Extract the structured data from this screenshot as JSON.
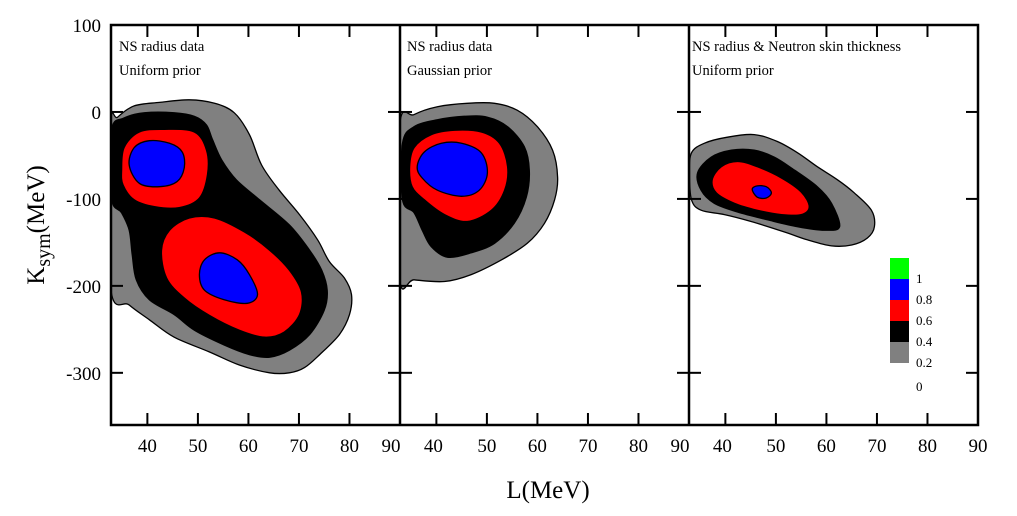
{
  "chart_data": {
    "type": "contour",
    "xlabel": "L(MeV)",
    "ylabel_main": "K",
    "ylabel_sub": "sym",
    "ylabel_unit": "(MeV)",
    "xlim": [
      32.8,
      90
    ],
    "ylim": [
      -360,
      100
    ],
    "xticks": [
      40,
      50,
      60,
      70,
      80,
      90
    ],
    "yticks": [
      100,
      0,
      -100,
      -200,
      -300
    ],
    "grid": false,
    "colorbar": {
      "placement": "right panel, lower-right",
      "levels": [
        {
          "range": [
            0.8,
            1.0
          ],
          "color": "#00ff00"
        },
        {
          "range": [
            0.6,
            0.8
          ],
          "color": "#0000ff"
        },
        {
          "range": [
            0.4,
            0.6
          ],
          "color": "#ff0000"
        },
        {
          "range": [
            0.2,
            0.4
          ],
          "color": "#000000"
        },
        {
          "range": [
            0.0,
            0.2
          ],
          "color": "#808080"
        }
      ],
      "tick_labels": [
        "1",
        "0.8",
        "0.6",
        "0.4",
        "0.2",
        "0"
      ]
    },
    "panels": [
      {
        "annotation": [
          "NS radius data",
          "Uniform prior"
        ],
        "contours": [
          {
            "level": "0.2",
            "color": "#808080",
            "points": [
              [
                32.7,
                -18
              ],
              [
                34.1,
                -6
              ],
              [
                37.4,
                7
              ],
              [
                42.4,
                11
              ],
              [
                48.3,
                14
              ],
              [
                53.3,
                10
              ],
              [
                57.2,
                -1
              ],
              [
                60.2,
                -26
              ],
              [
                62.6,
                -61
              ],
              [
                66.1,
                -90
              ],
              [
                70.1,
                -118
              ],
              [
                73.7,
                -147
              ],
              [
                76.0,
                -172
              ],
              [
                79.0,
                -191
              ],
              [
                80.4,
                -210
              ],
              [
                80.0,
                -233
              ],
              [
                78.0,
                -256
              ],
              [
                74.1,
                -279
              ],
              [
                71.1,
                -294
              ],
              [
                68.1,
                -300
              ],
              [
                64.2,
                -300
              ],
              [
                58.2,
                -291
              ],
              [
                52.3,
                -276
              ],
              [
                45.3,
                -259
              ],
              [
                40.4,
                -239
              ],
              [
                36.4,
                -222
              ],
              [
                32.7,
                -201
              ]
            ]
          },
          {
            "level": "0.4",
            "color": "#000000",
            "points": [
              [
                32.9,
                -21
              ],
              [
                35.4,
                -7
              ],
              [
                39.4,
                -1
              ],
              [
                45.3,
                -1
              ],
              [
                49.3,
                -5
              ],
              [
                51.7,
                -15
              ],
              [
                52.9,
                -32
              ],
              [
                54.7,
                -55
              ],
              [
                57.6,
                -78
              ],
              [
                62.2,
                -101
              ],
              [
                68.1,
                -130
              ],
              [
                72.1,
                -159
              ],
              [
                74.5,
                -182
              ],
              [
                75.6,
                -205
              ],
              [
                75.0,
                -228
              ],
              [
                72.1,
                -256
              ],
              [
                68.1,
                -274
              ],
              [
                64.2,
                -282
              ],
              [
                60.2,
                -279
              ],
              [
                55.2,
                -268
              ],
              [
                49.3,
                -251
              ],
              [
                45.3,
                -233
              ],
              [
                40.4,
                -216
              ],
              [
                37.8,
                -193
              ],
              [
                37.0,
                -164
              ],
              [
                36.4,
                -136
              ],
              [
                34.9,
                -116
              ],
              [
                32.9,
                -99
              ]
            ]
          },
          {
            "level": "0.6",
            "color": "#ff0000",
            "points": [
              [
                34.9,
                -67
              ],
              [
                35.4,
                -41
              ],
              [
                38.4,
                -23
              ],
              [
                43.4,
                -20
              ],
              [
                49.3,
                -23
              ],
              [
                51.7,
                -44
              ],
              [
                51.9,
                -72
              ],
              [
                50.3,
                -99
              ],
              [
                46.3,
                -110
              ],
              [
                41.4,
                -109
              ],
              [
                37.4,
                -101
              ],
              [
                35.2,
                -84
              ]
            ]
          },
          {
            "level": "0.8",
            "color": "#0000ff",
            "points": [
              [
                36.4,
                -61
              ],
              [
                37.4,
                -41
              ],
              [
                40.4,
                -33
              ],
              [
                44.4,
                -36
              ],
              [
                46.9,
                -46
              ],
              [
                47.3,
                -64
              ],
              [
                45.9,
                -80
              ],
              [
                42.4,
                -86
              ],
              [
                38.4,
                -82
              ]
            ]
          },
          {
            "level": "0.6",
            "color": "#ff0000",
            "points": [
              [
                42.8,
                -159
              ],
              [
                44.4,
                -136
              ],
              [
                48.3,
                -122
              ],
              [
                53.3,
                -122
              ],
              [
                59.2,
                -138
              ],
              [
                64.2,
                -159
              ],
              [
                68.1,
                -182
              ],
              [
                70.5,
                -207
              ],
              [
                70.1,
                -233
              ],
              [
                67.1,
                -253
              ],
              [
                63.2,
                -259
              ],
              [
                58.2,
                -251
              ],
              [
                52.3,
                -234
              ],
              [
                47.3,
                -214
              ],
              [
                43.8,
                -191
              ]
            ]
          },
          {
            "level": "0.8",
            "color": "#0000ff",
            "points": [
              [
                50.3,
                -187
              ],
              [
                51.3,
                -170
              ],
              [
                54.3,
                -162
              ],
              [
                57.8,
                -170
              ],
              [
                60.2,
                -187
              ],
              [
                61.8,
                -210
              ],
              [
                59.8,
                -220
              ],
              [
                55.2,
                -216
              ],
              [
                51.3,
                -205
              ]
            ]
          }
        ]
      },
      {
        "annotation": [
          "NS radius data",
          "Gaussian prior"
        ],
        "contours": [
          {
            "level": "0.2",
            "color": "#808080",
            "points": [
              [
                32.7,
                -17
              ],
              [
                35.6,
                -3
              ],
              [
                40.2,
                6
              ],
              [
                46.1,
                10
              ],
              [
                51.5,
                10
              ],
              [
                56.0,
                2
              ],
              [
                60.0,
                -17
              ],
              [
                63.0,
                -44
              ],
              [
                64.0,
                -75
              ],
              [
                63.4,
                -101
              ],
              [
                61.4,
                -128
              ],
              [
                58.0,
                -151
              ],
              [
                52.9,
                -170
              ],
              [
                46.9,
                -187
              ],
              [
                41.6,
                -195
              ],
              [
                35.6,
                -193
              ],
              [
                32.7,
                -190
              ]
            ]
          },
          {
            "level": "0.4",
            "color": "#000000",
            "points": [
              [
                33.3,
                -36
              ],
              [
                35.6,
                -17
              ],
              [
                40.2,
                -9
              ],
              [
                45.5,
                -5
              ],
              [
                50.1,
                -6
              ],
              [
                54.1,
                -17
              ],
              [
                57.4,
                -40
              ],
              [
                58.4,
                -67
              ],
              [
                57.8,
                -98
              ],
              [
                55.4,
                -128
              ],
              [
                51.5,
                -151
              ],
              [
                46.9,
                -162
              ],
              [
                42.2,
                -167
              ],
              [
                39.0,
                -155
              ],
              [
                37.2,
                -136
              ],
              [
                35.6,
                -116
              ],
              [
                33.3,
                -101
              ]
            ]
          },
          {
            "level": "0.6",
            "color": "#ff0000",
            "points": [
              [
                34.7,
                -63
              ],
              [
                35.6,
                -41
              ],
              [
                39.0,
                -26
              ],
              [
                43.6,
                -21
              ],
              [
                48.9,
                -23
              ],
              [
                52.5,
                -36
              ],
              [
                54.1,
                -63
              ],
              [
                53.5,
                -90
              ],
              [
                50.9,
                -113
              ],
              [
                46.1,
                -126
              ],
              [
                41.6,
                -118
              ],
              [
                37.6,
                -101
              ],
              [
                35.2,
                -86
              ]
            ]
          },
          {
            "level": "0.8",
            "color": "#0000ff",
            "points": [
              [
                36.2,
                -63
              ],
              [
                37.6,
                -46
              ],
              [
                41.0,
                -36
              ],
              [
                45.0,
                -36
              ],
              [
                48.9,
                -47
              ],
              [
                50.1,
                -70
              ],
              [
                48.5,
                -90
              ],
              [
                45.0,
                -97
              ],
              [
                40.2,
                -90
              ],
              [
                37.2,
                -76
              ]
            ]
          }
        ]
      },
      {
        "annotation": [
          "NS radius & Neutron skin thickness",
          "Uniform prior"
        ],
        "contours": [
          {
            "level": "0.2",
            "color": "#808080",
            "points": [
              [
                33.3,
                -47
              ],
              [
                35.8,
                -36
              ],
              [
                40.4,
                -29
              ],
              [
                45.7,
                -26
              ],
              [
                50.3,
                -34
              ],
              [
                54.3,
                -47
              ],
              [
                58.2,
                -63
              ],
              [
                62.2,
                -78
              ],
              [
                65.5,
                -93
              ],
              [
                68.9,
                -113
              ],
              [
                69.5,
                -132
              ],
              [
                68.1,
                -145
              ],
              [
                65.0,
                -153
              ],
              [
                61.0,
                -154
              ],
              [
                56.2,
                -147
              ],
              [
                51.7,
                -138
              ],
              [
                45.1,
                -126
              ],
              [
                39.8,
                -118
              ],
              [
                35.2,
                -113
              ],
              [
                33.3,
                -101
              ],
              [
                32.9,
                -70
              ]
            ]
          },
          {
            "level": "0.4",
            "color": "#000000",
            "points": [
              [
                34.5,
                -70
              ],
              [
                37.2,
                -52
              ],
              [
                41.2,
                -44
              ],
              [
                45.7,
                -44
              ],
              [
                49.7,
                -52
              ],
              [
                53.7,
                -67
              ],
              [
                58.2,
                -86
              ],
              [
                61.0,
                -105
              ],
              [
                62.6,
                -132
              ],
              [
                59.6,
                -136
              ],
              [
                54.3,
                -132
              ],
              [
                48.3,
                -124
              ],
              [
                42.4,
                -115
              ],
              [
                37.8,
                -105
              ],
              [
                35.2,
                -90
              ]
            ]
          },
          {
            "level": "0.6",
            "color": "#ff0000",
            "points": [
              [
                37.4,
                -78
              ],
              [
                39.2,
                -63
              ],
              [
                42.4,
                -57
              ],
              [
                46.3,
                -63
              ],
              [
                51.1,
                -76
              ],
              [
                55.0,
                -92
              ],
              [
                56.6,
                -109
              ],
              [
                55.0,
                -118
              ],
              [
                51.1,
                -118
              ],
              [
                46.3,
                -113
              ],
              [
                41.8,
                -105
              ],
              [
                38.2,
                -93
              ]
            ]
          },
          {
            "level": "0.8",
            "color": "#0000ff",
            "points": [
              [
                45.3,
                -89
              ],
              [
                46.3,
                -85
              ],
              [
                48.1,
                -86
              ],
              [
                49.1,
                -93
              ],
              [
                48.1,
                -99
              ],
              [
                46.3,
                -98
              ]
            ]
          }
        ]
      }
    ]
  }
}
